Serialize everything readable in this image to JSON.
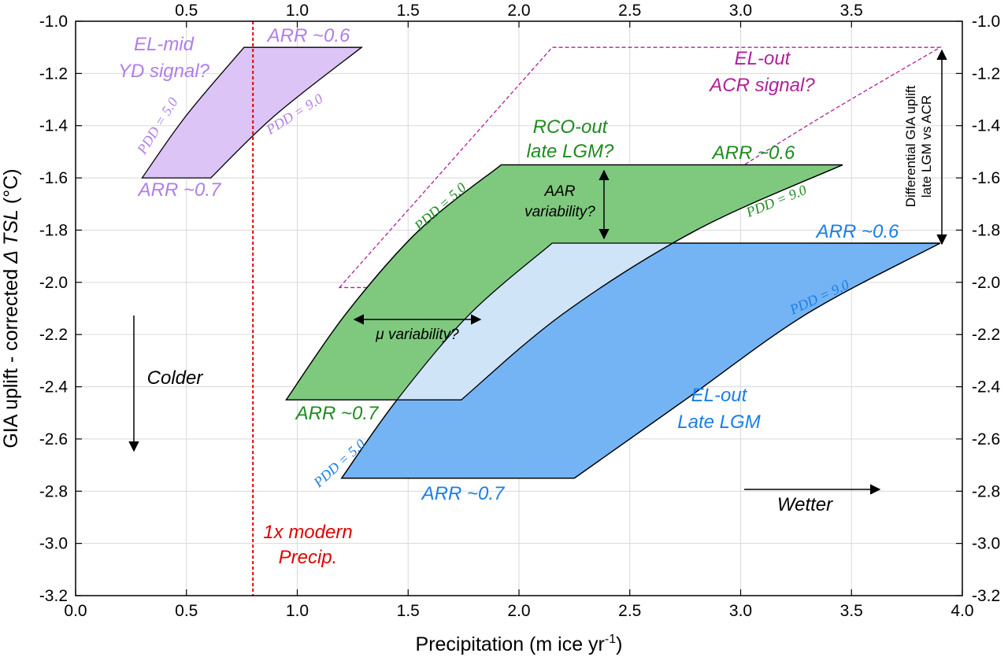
{
  "colors": {
    "purple_fill": "#dcc4f6",
    "purple_text": "#b07ee8",
    "green_fill": "#7fc97f",
    "green_text": "#1e8c1e",
    "blue_fill": "#74b4f4",
    "blue_text": "#1a7ee6",
    "light_blue_fill": "#d0e4f8",
    "magenta": "#b0209b",
    "red": "#e00000",
    "grid": "#d9d9d9"
  },
  "chart_data": {
    "type": "area",
    "xlabel": "Precipitation (m ice yr",
    "xlabel_sup": "-1",
    "xlabel_end": ")",
    "ylabel": "GIA uplift - corrected ",
    "ylabel_italic": "Δ TSL",
    "ylabel_end": " (°C)",
    "xlim": [
      0.0,
      4.0
    ],
    "ylim": [
      -3.2,
      -1.0
    ],
    "grid": true,
    "x_ticks": [
      "0.0",
      "0.5",
      "1.0",
      "1.5",
      "2.0",
      "2.5",
      "3.0",
      "3.5",
      "4.0"
    ],
    "top_x_ticks": [
      "0.5",
      "1.0",
      "1.5",
      "2.0",
      "2.5",
      "3.0",
      "3.5"
    ],
    "y_ticks": [
      "-1.0",
      "-1.2",
      "-1.4",
      "-1.6",
      "-1.8",
      "-2.0",
      "-2.2",
      "-2.4",
      "-2.6",
      "-2.8",
      "-3.0",
      "-3.2"
    ],
    "series": [
      {
        "key": "el_mid",
        "name": "EL-mid YD signal?",
        "top": {
          "x": [
            0.76,
            1.29
          ],
          "y": -1.1
        },
        "bottom": {
          "x": [
            0.3,
            0.61
          ],
          "y": -1.6
        },
        "pdd_low_curve": [
          [
            0.3,
            -1.6
          ],
          [
            0.5,
            -1.36
          ],
          [
            0.76,
            -1.1
          ]
        ],
        "pdd_high_curve": [
          [
            0.61,
            -1.6
          ],
          [
            0.9,
            -1.36
          ],
          [
            1.29,
            -1.1
          ]
        ]
      },
      {
        "key": "rco_out",
        "name": "RCO-out late LGM?",
        "top": {
          "x": [
            1.92,
            3.46
          ],
          "y": -1.55
        },
        "bottom": {
          "x": [
            0.95,
            1.74
          ],
          "y": -2.45
        },
        "pdd_low_curve": [
          [
            0.95,
            -2.45
          ],
          [
            1.22,
            -2.12
          ],
          [
            1.55,
            -1.8
          ],
          [
            1.92,
            -1.55
          ]
        ],
        "pdd_high_curve": [
          [
            1.74,
            -2.45
          ],
          [
            2.2,
            -2.12
          ],
          [
            2.8,
            -1.8
          ],
          [
            3.46,
            -1.55
          ]
        ]
      },
      {
        "key": "el_out",
        "name": "EL-out Late LGM",
        "top": {
          "x": [
            2.15,
            3.9
          ],
          "y": -1.85
        },
        "bottom": {
          "x": [
            1.2,
            2.25
          ],
          "y": -2.75
        },
        "pdd_low_curve": [
          [
            1.2,
            -2.75
          ],
          [
            1.45,
            -2.45
          ],
          [
            1.78,
            -2.12
          ],
          [
            2.15,
            -1.85
          ]
        ],
        "pdd_high_curve": [
          [
            2.25,
            -2.75
          ],
          [
            2.75,
            -2.45
          ],
          [
            3.3,
            -2.12
          ],
          [
            3.9,
            -1.85
          ]
        ]
      },
      {
        "key": "el_out_acr",
        "name": "EL-out ACR signal?",
        "style": "dashed-outline",
        "polygon": [
          [
            1.19,
            -2.02
          ],
          [
            2.15,
            -1.1
          ],
          [
            3.9,
            -1.1
          ],
          [
            2.25,
            -2.02
          ]
        ],
        "curve_high": [
          [
            2.25,
            -2.02
          ],
          [
            2.75,
            -1.7
          ],
          [
            3.3,
            -1.4
          ],
          [
            3.9,
            -1.1
          ]
        ]
      }
    ],
    "reference_line": {
      "label": "1x modern Precip.",
      "x": 0.8
    },
    "annotations": {
      "el_mid_title": [
        "EL-mid",
        "YD signal?"
      ],
      "el_mid_arr_top": "ARR ~0.6",
      "el_mid_arr_bottom": "ARR ~0.7",
      "el_out_acr_title": [
        "EL-out",
        "ACR signal?"
      ],
      "rco_title": [
        "RCO-out",
        "late LGM?"
      ],
      "rco_arr_top": "ARR ~0.6",
      "rco_arr_bottom": "ARR ~0.7",
      "el_out_title": [
        "EL-out",
        "Late LGM"
      ],
      "el_out_arr_top": "ARR ~0.6",
      "el_out_arr_bottom": "ARR ~0.7",
      "aar_variability": [
        "AAR",
        "variability?"
      ],
      "mu_variability": "μ variability?",
      "colder": "Colder",
      "wetter": "Wetter",
      "differential": [
        "Differential GIA uplift",
        "late LGM vs ACR"
      ],
      "pdd_low": "PDD = 5.0",
      "pdd_high": "PDD = 9.0",
      "modern_precip": [
        "1x modern",
        "Precip."
      ]
    }
  }
}
